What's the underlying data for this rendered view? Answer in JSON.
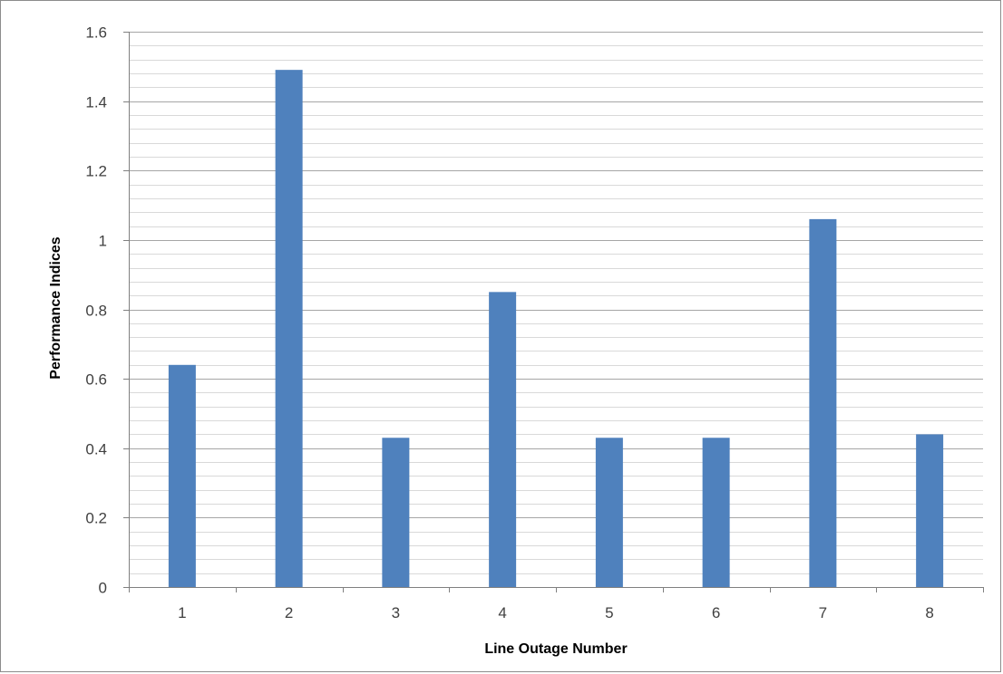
{
  "chart_data": {
    "type": "bar",
    "title": "",
    "xlabel": "Line Outage Number",
    "ylabel": "Performance Indices",
    "categories": [
      "1",
      "2",
      "3",
      "4",
      "5",
      "6",
      "7",
      "8"
    ],
    "values": [
      0.64,
      1.49,
      0.43,
      0.85,
      0.43,
      0.43,
      1.06,
      0.44
    ],
    "ylim": [
      0,
      1.6
    ],
    "y_major_ticks": [
      "0",
      "0.2",
      "0.4",
      "0.6",
      "0.8",
      "1",
      "1.2",
      "1.4",
      "1.6"
    ],
    "y_major_step": 0.2,
    "y_minor_step": 0.04,
    "grid": true,
    "legend": "none",
    "colors": {
      "bar": "#4f81bd",
      "major_grid": "#a6a6a6",
      "minor_grid": "#d9d9d9",
      "axis": "#808080",
      "frame": "#8c8c8c"
    }
  }
}
